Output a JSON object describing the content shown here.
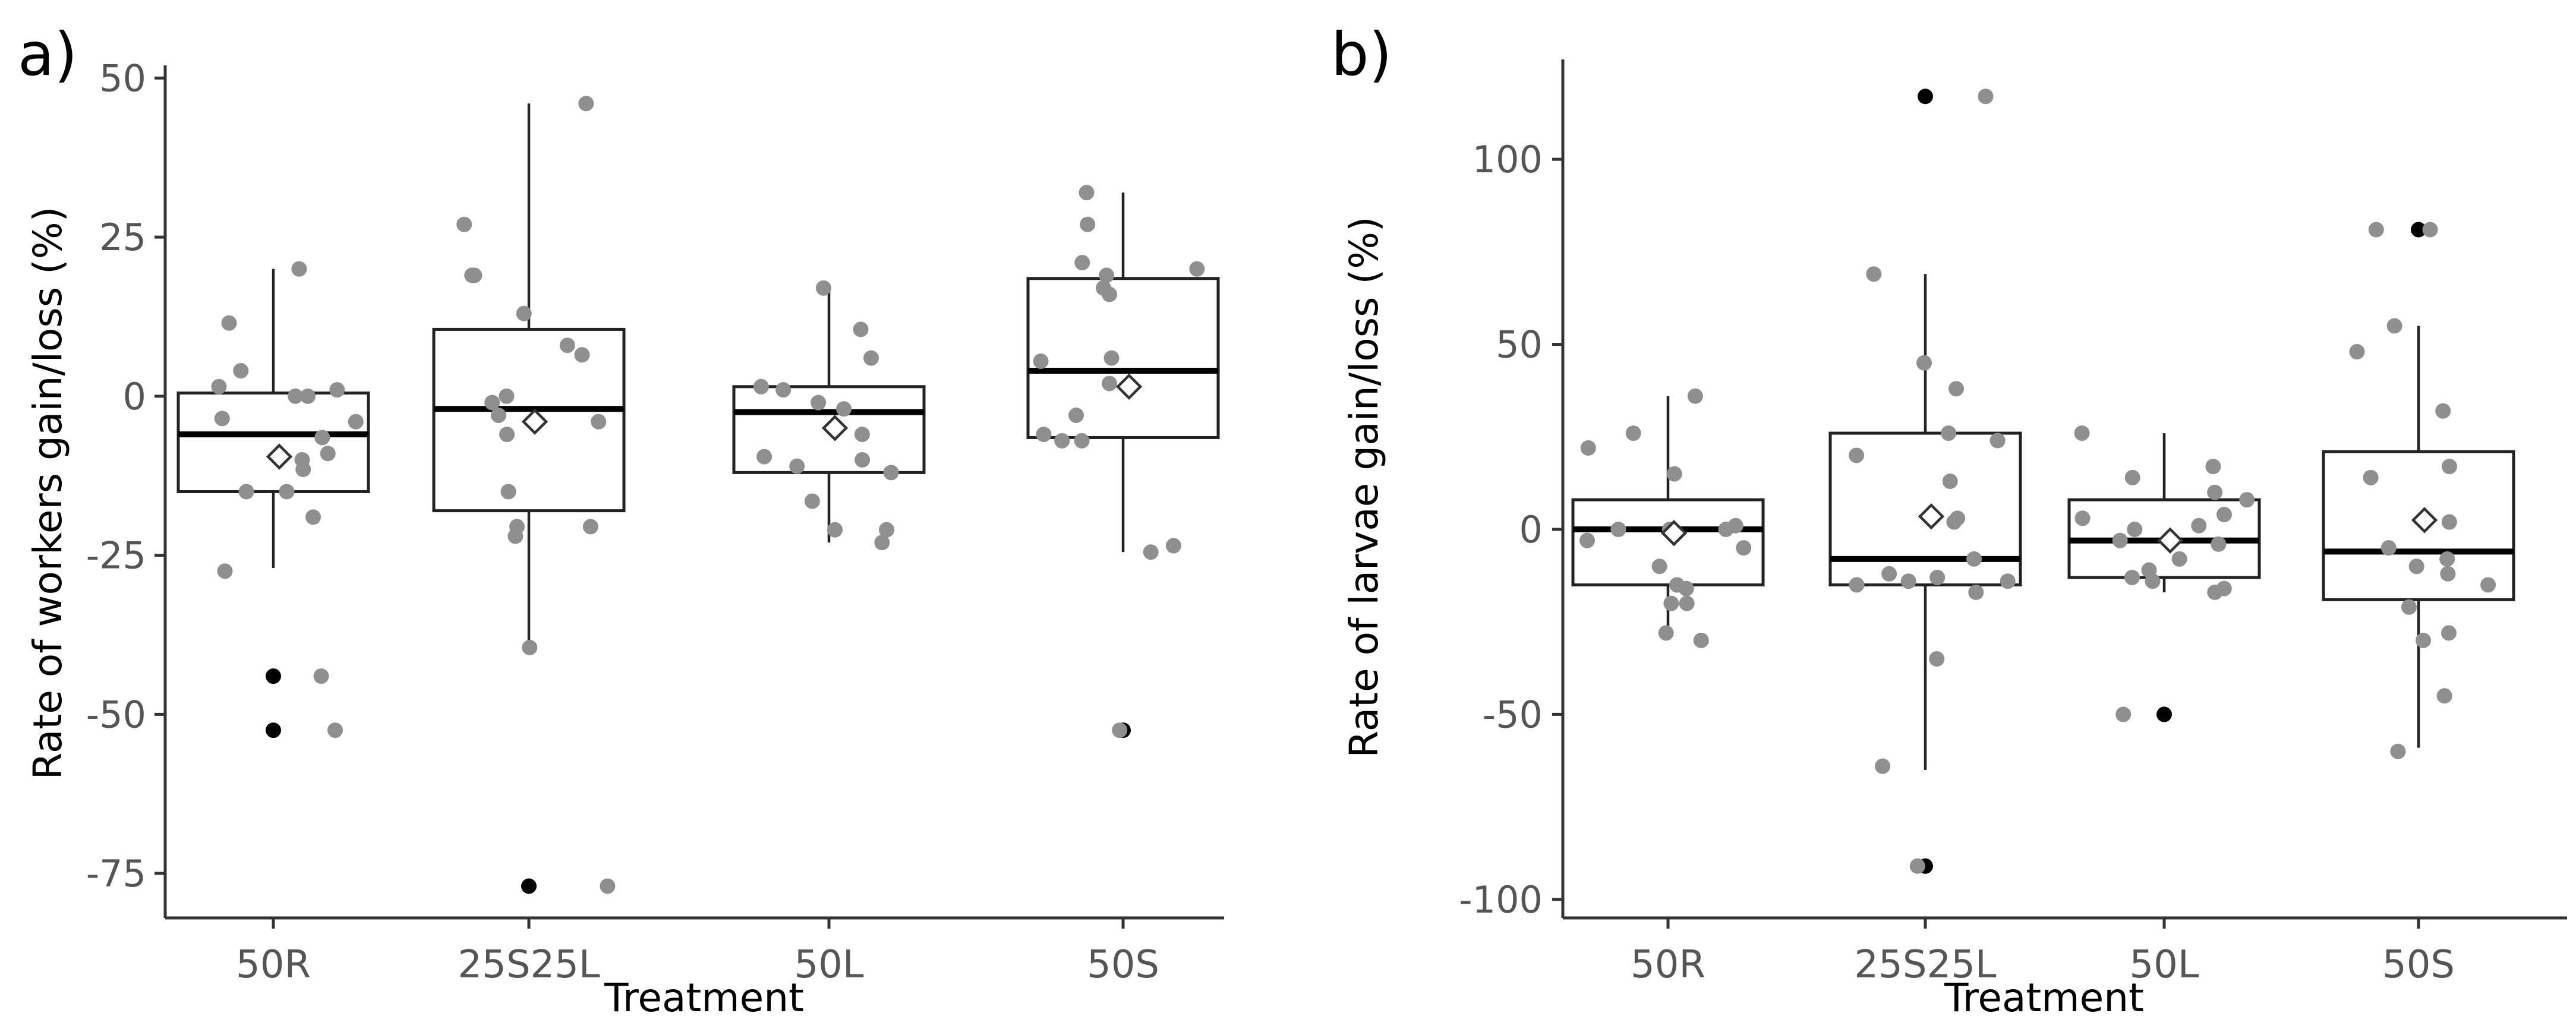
{
  "chart_data": [
    {
      "panel_label": "a)",
      "type": "box",
      "xlabel": "Treatment",
      "ylabel": "Rate of workers gain/loss (%)",
      "ylim": [
        -82,
        52
      ],
      "yticks": [
        50,
        25,
        0,
        -25,
        -50,
        -75
      ],
      "yticklabels": [
        "50",
        "25",
        "0",
        "-25",
        "-50",
        "-75"
      ],
      "categories": [
        "50R",
        "25S25L",
        "50L",
        "50S"
      ],
      "groups": [
        {
          "name": "50R",
          "q1": -15,
          "median": -6,
          "q3": 0.5,
          "whisker_low": -27,
          "whisker_high": 20,
          "mean": -9.5,
          "outliers": [
            -44,
            -52.5
          ],
          "points": [
            20,
            4,
            0,
            -4,
            -11.5,
            -10,
            1.5,
            1,
            0,
            -9,
            -19,
            -15,
            -6.5,
            -3.5,
            -15,
            11.5,
            -27.5,
            -44,
            -52.5
          ]
        },
        {
          "name": "25S25L",
          "q1": -18,
          "median": -2,
          "q3": 10.5,
          "whisker_low": -39.5,
          "whisker_high": 46,
          "mean": -4,
          "outliers": [
            -77
          ],
          "points": [
            46,
            27,
            13,
            8,
            0,
            -1,
            -6,
            -4,
            -20.5,
            -22,
            -20.5,
            6.5,
            19,
            19,
            -3,
            -15,
            -39.5,
            -77
          ]
        },
        {
          "name": "50L",
          "q1": -12,
          "median": -2.5,
          "q3": 1.5,
          "whisker_low": -23,
          "whisker_high": 17,
          "mean": -5,
          "outliers": [],
          "points": [
            17,
            6,
            1,
            -1,
            -12,
            -23,
            -11,
            -21,
            -21,
            -10,
            -9.5,
            -2,
            1.5,
            10.5,
            -16.5,
            -6
          ]
        },
        {
          "name": "50S",
          "q1": -6.5,
          "median": 4,
          "q3": 18.5,
          "whisker_low": -24.5,
          "whisker_high": 32,
          "mean": 1.5,
          "outliers": [
            -52.5
          ],
          "points": [
            21,
            17,
            19,
            16,
            20,
            6,
            -6,
            -7,
            -7,
            -24.5,
            5.5,
            27,
            32,
            2,
            -3,
            -23.5,
            -52.5
          ]
        }
      ]
    },
    {
      "panel_label": "b)",
      "type": "box",
      "xlabel": "Treatment",
      "ylabel": "Rate of larvae gain/loss (%)",
      "ylim": [
        -105,
        127
      ],
      "yticks": [
        100,
        50,
        0,
        -50,
        -100
      ],
      "yticklabels": [
        "100",
        "50",
        "0",
        "-50",
        "-100"
      ],
      "categories": [
        "50R",
        "25S25L",
        "50L",
        "50S"
      ],
      "groups": [
        {
          "name": "50R",
          "q1": -15,
          "median": 0,
          "q3": 8,
          "whisker_low": -28,
          "whisker_high": 36,
          "mean": -1,
          "outliers": [],
          "points": [
            15,
            0,
            -20,
            -30,
            22,
            -15,
            -10,
            0,
            36,
            26,
            -28,
            -5,
            0,
            -20,
            1,
            -16,
            -3
          ]
        },
        {
          "name": "25S25L",
          "q1": -15,
          "median": -8,
          "q3": 26,
          "whisker_low": -65,
          "whisker_high": 69,
          "mean": 3.5,
          "outliers": [
            117,
            -91
          ],
          "points": [
            26,
            13,
            -14,
            -17,
            38,
            -12,
            -8,
            -14,
            45,
            69,
            -35,
            2,
            117,
            -13,
            3,
            20,
            24,
            -15,
            -64,
            -91
          ]
        },
        {
          "name": "50L",
          "q1": -13,
          "median": -3,
          "q3": 8,
          "whisker_low": -17,
          "whisker_high": 26,
          "mean": -3,
          "outliers": [
            -50
          ],
          "points": [
            10,
            14,
            4,
            -3,
            -17,
            -11,
            -14,
            3,
            0,
            1,
            -4,
            17,
            8,
            -8,
            -16,
            -13,
            26,
            -50
          ]
        },
        {
          "name": "50S",
          "q1": -19,
          "median": -6,
          "q3": 21,
          "whisker_low": -59,
          "whisker_high": 55,
          "mean": 2.5,
          "outliers": [
            81
          ],
          "points": [
            -30,
            32,
            17,
            -8,
            -10,
            -45,
            -15,
            -28,
            48,
            81,
            14,
            -12,
            -21,
            -5,
            2,
            55,
            -60,
            81
          ]
        }
      ]
    }
  ]
}
